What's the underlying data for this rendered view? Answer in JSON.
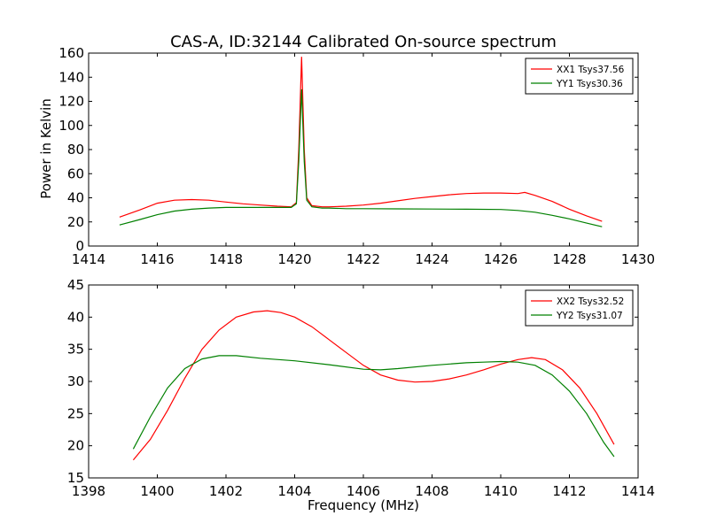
{
  "figure": {
    "title": "CAS-A, ID:32144 Calibrated On-source spectrum",
    "ylabel": "Power in Kelvin",
    "xlabel": "Frequency (MHz)"
  },
  "chart_data": [
    {
      "type": "line",
      "title": "CAS-A, ID:32144 Calibrated On-source spectrum",
      "ylabel": "Power in Kelvin",
      "xlabel": "",
      "xlim": [
        1414,
        1430
      ],
      "ylim": [
        0,
        160
      ],
      "xticks": [
        1414,
        1416,
        1418,
        1420,
        1422,
        1424,
        1426,
        1428,
        1430
      ],
      "yticks": [
        0,
        20,
        40,
        60,
        80,
        100,
        120,
        140,
        160
      ],
      "grid": false,
      "legend_position": "top-right",
      "series": [
        {
          "name": "XX1 Tsys37.56",
          "color": "#ff0000",
          "x": [
            1414.9,
            1415.5,
            1416.0,
            1416.5,
            1417.0,
            1417.5,
            1418.0,
            1418.5,
            1419.0,
            1419.5,
            1419.9,
            1420.05,
            1420.12,
            1420.2,
            1420.28,
            1420.35,
            1420.5,
            1420.8,
            1421.0,
            1421.5,
            1422.0,
            1422.5,
            1423.0,
            1423.5,
            1424.0,
            1424.5,
            1425.0,
            1425.5,
            1426.0,
            1426.5,
            1426.7,
            1427.0,
            1427.5,
            1428.0,
            1428.5,
            1428.95
          ],
          "values": [
            24,
            30,
            35.5,
            38,
            38.5,
            38,
            36.5,
            35,
            34,
            33,
            32.5,
            36,
            80,
            157,
            80,
            40,
            33.5,
            32.5,
            32.5,
            33,
            34,
            35.5,
            37.5,
            39.5,
            41,
            42.5,
            43.5,
            44,
            44,
            43.5,
            44.5,
            42,
            37,
            30.5,
            25,
            20.5
          ]
        },
        {
          "name": "YY1 Tsys30.36",
          "color": "#008000",
          "x": [
            1414.9,
            1415.5,
            1416.0,
            1416.5,
            1417.0,
            1417.5,
            1418.0,
            1418.5,
            1419.0,
            1419.5,
            1419.9,
            1420.05,
            1420.12,
            1420.2,
            1420.28,
            1420.35,
            1420.5,
            1420.8,
            1421.0,
            1421.5,
            1422.0,
            1423.0,
            1424.0,
            1425.0,
            1426.0,
            1426.5,
            1427.0,
            1427.5,
            1428.0,
            1428.5,
            1428.95
          ],
          "values": [
            17.5,
            22,
            26,
            29,
            30.5,
            31.5,
            32,
            32,
            32,
            32,
            32,
            35,
            70,
            130,
            70,
            38,
            32.5,
            31.5,
            31.5,
            31,
            31,
            30.8,
            30.7,
            30.5,
            30.3,
            29.5,
            28,
            25.5,
            22.5,
            19,
            16
          ]
        }
      ]
    },
    {
      "type": "line",
      "xlabel": "Frequency (MHz)",
      "ylabel": "",
      "xlim": [
        1398,
        1414
      ],
      "ylim": [
        15,
        45
      ],
      "xticks": [
        1398,
        1400,
        1402,
        1404,
        1406,
        1408,
        1410,
        1412,
        1414
      ],
      "yticks": [
        15,
        20,
        25,
        30,
        35,
        40,
        45
      ],
      "grid": false,
      "legend_position": "top-right",
      "series": [
        {
          "name": "XX2 Tsys32.52",
          "color": "#ff0000",
          "x": [
            1399.3,
            1399.8,
            1400.3,
            1400.8,
            1401.3,
            1401.8,
            1402.3,
            1402.8,
            1403.2,
            1403.6,
            1404.0,
            1404.5,
            1405.0,
            1405.5,
            1406.0,
            1406.5,
            1407.0,
            1407.5,
            1408.0,
            1408.5,
            1409.0,
            1409.5,
            1410.0,
            1410.5,
            1410.9,
            1411.3,
            1411.8,
            1412.3,
            1412.8,
            1413.3
          ],
          "values": [
            17.8,
            21,
            25.5,
            30.5,
            35,
            38,
            40,
            40.8,
            41,
            40.7,
            40,
            38.5,
            36.5,
            34.5,
            32.5,
            31,
            30.2,
            29.9,
            30,
            30.4,
            31,
            31.8,
            32.7,
            33.4,
            33.7,
            33.4,
            31.8,
            29,
            25,
            20.2
          ]
        },
        {
          "name": "YY2 Tsys31.07",
          "color": "#008000",
          "x": [
            1399.3,
            1399.8,
            1400.3,
            1400.8,
            1401.3,
            1401.8,
            1402.3,
            1403.0,
            1404.0,
            1405.0,
            1406.0,
            1406.5,
            1407.0,
            1408.0,
            1409.0,
            1409.5,
            1410.0,
            1410.5,
            1411.0,
            1411.5,
            1412.0,
            1412.5,
            1413.0,
            1413.3
          ],
          "values": [
            19.5,
            24.5,
            29,
            32,
            33.5,
            34,
            34,
            33.6,
            33.2,
            32.6,
            31.9,
            31.8,
            32,
            32.5,
            32.9,
            33,
            33.1,
            33,
            32.5,
            31,
            28.5,
            25,
            20.5,
            18.3
          ]
        }
      ]
    }
  ]
}
